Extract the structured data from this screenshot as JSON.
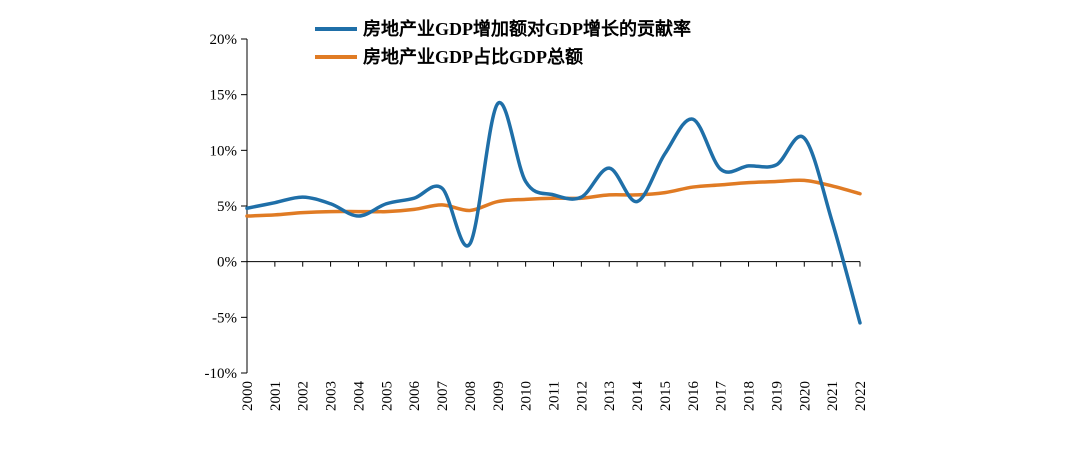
{
  "chart_data": {
    "type": "line",
    "title": "",
    "xlabel": "",
    "ylabel": "",
    "categories": [
      "2000",
      "2001",
      "2002",
      "2003",
      "2004",
      "2005",
      "2006",
      "2007",
      "2008",
      "2009",
      "2010",
      "2011",
      "2012",
      "2013",
      "2014",
      "2015",
      "2016",
      "2017",
      "2018",
      "2019",
      "2020",
      "2021",
      "2022"
    ],
    "ylim": [
      -10,
      20
    ],
    "yticks": [
      -10,
      -5,
      0,
      5,
      10,
      15,
      20
    ],
    "ytick_labels": [
      "-10%",
      "-5%",
      "0%",
      "5%",
      "10%",
      "15%",
      "20%"
    ],
    "y_unit": "%",
    "grid": false,
    "legend_position": "top-center",
    "series": [
      {
        "name": "房地产业GDP增加额对GDP增长的贡献率",
        "color": "#1F6FA8",
        "values": [
          4.8,
          5.3,
          5.8,
          5.2,
          4.1,
          5.2,
          5.7,
          6.6,
          1.6,
          14.2,
          7.2,
          6.0,
          5.8,
          8.4,
          5.4,
          9.7,
          12.8,
          8.3,
          8.6,
          8.7,
          11.1,
          3.6,
          -5.5
        ]
      },
      {
        "name": "房地产业GDP占比GDP总额",
        "color": "#E07B24",
        "values": [
          4.1,
          4.2,
          4.4,
          4.5,
          4.5,
          4.5,
          4.7,
          5.1,
          4.6,
          5.4,
          5.6,
          5.7,
          5.7,
          6.0,
          6.0,
          6.2,
          6.7,
          6.9,
          7.1,
          7.2,
          7.3,
          6.8,
          6.1
        ]
      }
    ]
  }
}
